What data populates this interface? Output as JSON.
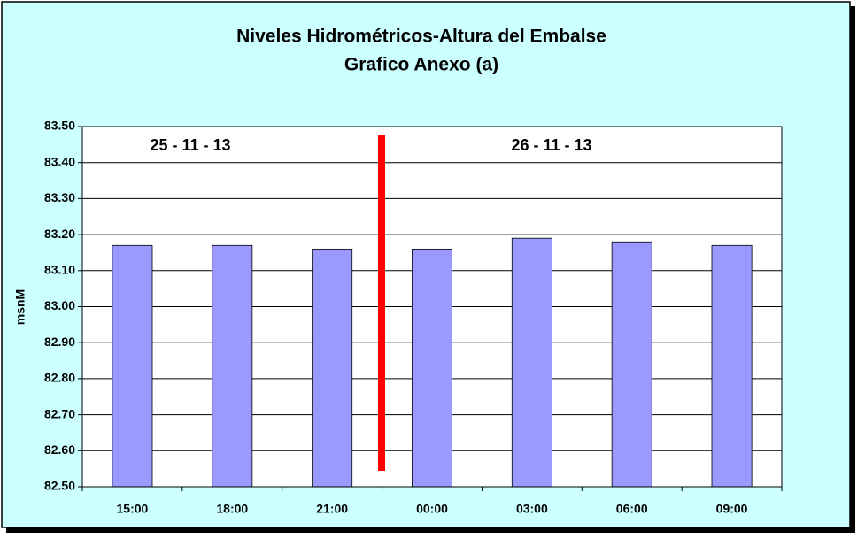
{
  "chart_data": {
    "type": "bar",
    "title": "Niveles Hidrométricos-Altura del Embalse",
    "subtitle": "Grafico Anexo (a)",
    "y_label": "msnM",
    "annotations": [
      "25 - 11 - 13",
      "26 - 11 - 13"
    ],
    "categories": [
      "15:00",
      "18:00",
      "21:00",
      "00:00",
      "03:00",
      "06:00",
      "09:00"
    ],
    "values": [
      83.17,
      83.17,
      83.16,
      83.16,
      83.19,
      83.18,
      83.17
    ],
    "color": "#9999ff",
    "ylim": [
      82.5,
      83.5
    ],
    "yticks": [
      {
        "value": 82.5,
        "label": "82.50"
      },
      {
        "value": 82.6,
        "label": "82.60"
      },
      {
        "value": 82.7,
        "label": "82.70"
      },
      {
        "value": 82.8,
        "label": "82.80"
      },
      {
        "value": 82.9,
        "label": "82.90"
      },
      {
        "value": 83.0,
        "label": "83.00"
      },
      {
        "value": 83.1,
        "label": "83.10"
      },
      {
        "value": 83.2,
        "label": "83.20"
      },
      {
        "value": 83.3,
        "label": "83.30"
      },
      {
        "value": 83.4,
        "label": "83.40"
      },
      {
        "value": 83.5,
        "label": "83.50"
      }
    ],
    "grid": true
  }
}
